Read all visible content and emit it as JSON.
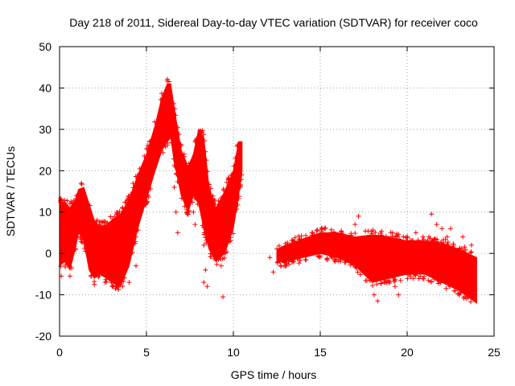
{
  "chart_data": {
    "type": "scatter",
    "title": "Day 218 of 2011, Sidereal Day-to-day VTEC variation (SDTVAR) for receiver coco",
    "xlabel": "GPS time / hours",
    "ylabel": "SDTVAR / TECUs",
    "xlim": [
      0,
      25
    ],
    "ylim": [
      -20,
      50
    ],
    "xticks": [
      0,
      5,
      10,
      15,
      20,
      25
    ],
    "yticks": [
      -20,
      -10,
      0,
      10,
      20,
      30,
      40,
      50
    ],
    "grid": true,
    "marker": "+",
    "color": "#ff0000",
    "series": [
      {
        "name": "SDTVAR",
        "upper_envelope": [
          [
            0.0,
            12
          ],
          [
            0.3,
            12.5
          ],
          [
            0.6,
            11
          ],
          [
            0.9,
            13
          ],
          [
            1.1,
            15.5
          ],
          [
            1.4,
            16
          ],
          [
            1.7,
            12
          ],
          [
            2.0,
            8
          ],
          [
            2.3,
            6.5
          ],
          [
            2.7,
            7
          ],
          [
            3.0,
            8
          ],
          [
            3.5,
            9.5
          ],
          [
            4.0,
            13
          ],
          [
            4.5,
            19
          ],
          [
            5.0,
            24
          ],
          [
            5.5,
            31
          ],
          [
            5.9,
            38
          ],
          [
            6.2,
            41
          ],
          [
            6.4,
            41
          ],
          [
            6.6,
            35
          ],
          [
            7.0,
            25
          ],
          [
            7.4,
            21
          ],
          [
            7.7,
            24
          ],
          [
            8.0,
            30
          ],
          [
            8.3,
            28
          ],
          [
            8.6,
            16
          ],
          [
            9.0,
            11
          ],
          [
            9.5,
            15
          ],
          [
            10.0,
            20
          ],
          [
            10.3,
            27
          ],
          [
            10.5,
            27
          ]
        ],
        "lower_envelope": [
          [
            0.0,
            -3
          ],
          [
            0.3,
            -2
          ],
          [
            0.6,
            -4
          ],
          [
            0.9,
            1
          ],
          [
            1.1,
            5
          ],
          [
            1.4,
            3
          ],
          [
            1.7,
            -4
          ],
          [
            2.0,
            -6
          ],
          [
            2.3,
            -5
          ],
          [
            2.7,
            -6
          ],
          [
            3.0,
            -7
          ],
          [
            3.5,
            -8
          ],
          [
            4.0,
            -3
          ],
          [
            4.5,
            6
          ],
          [
            5.0,
            13
          ],
          [
            5.5,
            20
          ],
          [
            5.9,
            25
          ],
          [
            6.2,
            27
          ],
          [
            6.4,
            28
          ],
          [
            6.6,
            22
          ],
          [
            7.0,
            14
          ],
          [
            7.4,
            10
          ],
          [
            7.7,
            14
          ],
          [
            8.0,
            12
          ],
          [
            8.3,
            6
          ],
          [
            8.6,
            1
          ],
          [
            9.0,
            -2
          ],
          [
            9.5,
            0
          ],
          [
            10.0,
            6
          ],
          [
            10.3,
            14
          ],
          [
            10.5,
            20
          ]
        ],
        "upper_envelope_2": [
          [
            12.5,
            1
          ],
          [
            13.0,
            2
          ],
          [
            14.0,
            3.5
          ],
          [
            15.0,
            5
          ],
          [
            16.0,
            5
          ],
          [
            17.0,
            4
          ],
          [
            18.0,
            4.5
          ],
          [
            19.0,
            4
          ],
          [
            20.0,
            3
          ],
          [
            21.0,
            3
          ],
          [
            22.0,
            2.5
          ],
          [
            23.0,
            1
          ],
          [
            24.0,
            -1
          ]
        ],
        "lower_envelope_2": [
          [
            12.5,
            -2
          ],
          [
            13.0,
            -2
          ],
          [
            14.0,
            -1
          ],
          [
            15.0,
            0
          ],
          [
            16.0,
            -1
          ],
          [
            17.0,
            -3
          ],
          [
            18.0,
            -7
          ],
          [
            19.0,
            -6
          ],
          [
            20.0,
            -5
          ],
          [
            21.0,
            -5
          ],
          [
            22.0,
            -7
          ],
          [
            23.0,
            -9
          ],
          [
            24.0,
            -12
          ]
        ],
        "outliers": [
          [
            0.1,
            -5.5
          ],
          [
            0.6,
            -5.5
          ],
          [
            0.7,
            -3.5
          ],
          [
            2.0,
            -7.5
          ],
          [
            3.3,
            -8
          ],
          [
            4.0,
            -7
          ],
          [
            4.4,
            -3
          ],
          [
            6.6,
            16
          ],
          [
            6.7,
            10
          ],
          [
            6.8,
            5
          ],
          [
            7.6,
            14
          ],
          [
            7.7,
            10
          ],
          [
            7.8,
            7
          ],
          [
            8.3,
            2
          ],
          [
            8.4,
            -4
          ],
          [
            8.5,
            -8
          ],
          [
            8.3,
            -7
          ],
          [
            9.3,
            -3
          ],
          [
            9.4,
            -10.5
          ],
          [
            12.1,
            -1
          ],
          [
            12.3,
            -4.5
          ],
          [
            13.0,
            -3
          ],
          [
            17.0,
            7
          ],
          [
            17.2,
            9
          ],
          [
            18.1,
            -10
          ],
          [
            18.3,
            -11.5
          ],
          [
            19.3,
            -8
          ],
          [
            19.5,
            -10
          ],
          [
            20.5,
            5
          ],
          [
            20.9,
            4
          ],
          [
            21.4,
            9.5
          ],
          [
            21.7,
            7
          ],
          [
            22.0,
            6
          ],
          [
            22.3,
            4
          ],
          [
            22.5,
            6
          ],
          [
            23.2,
            4
          ],
          [
            23.7,
            2
          ],
          [
            23.9,
            -9
          ]
        ]
      }
    ]
  }
}
